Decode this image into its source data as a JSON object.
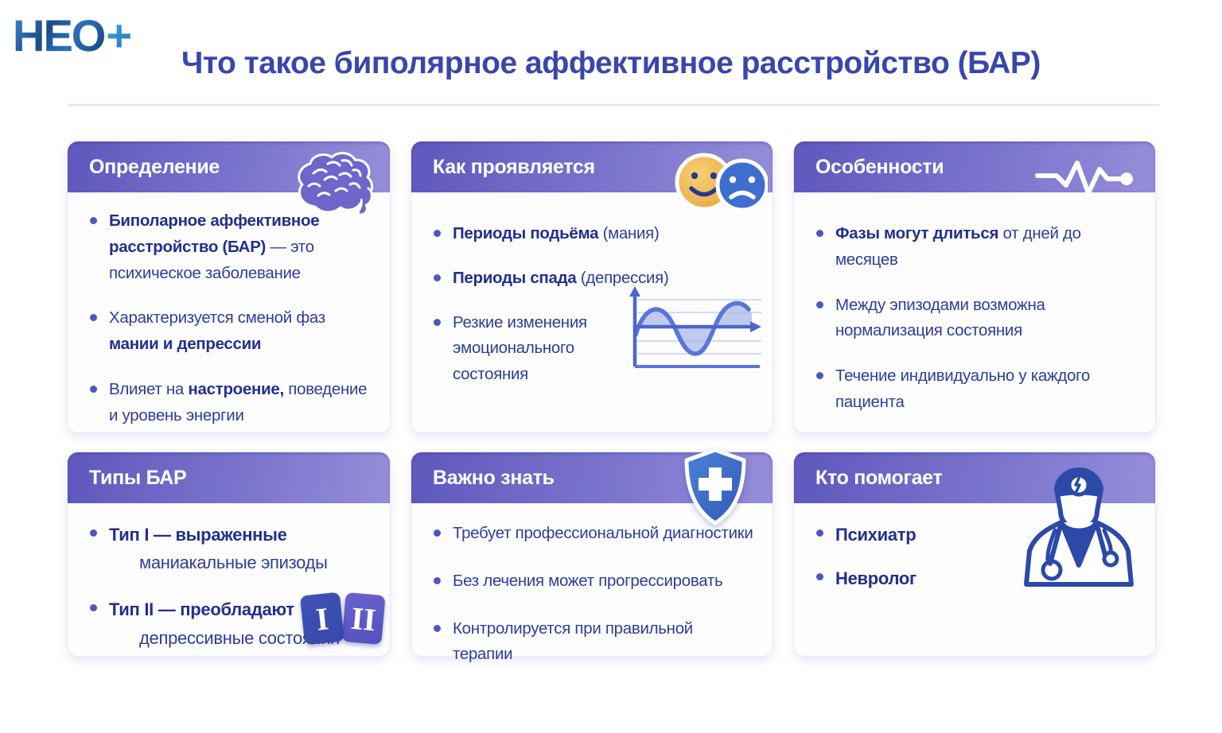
{
  "logo": {
    "main": "НЕО",
    "plus": "+"
  },
  "title": "Что такое биполярное аффективное расстройство (БАР)",
  "colors": {
    "title_blue": "#3946ac",
    "header_gradient_start": "#5f58bd",
    "header_gradient_end": "#948ed9",
    "body_text": "#2e3d99",
    "bullet_dot": "#4d58bb",
    "smiley_orange": "#efb457",
    "sad_blue": "#3e6ed0",
    "shield_blue": "#3e6dc9"
  },
  "cards": [
    {
      "title": "Определение",
      "icon": "brain-icon",
      "bullets": [
        {
          "segments": [
            {
              "t": "Биполарное аффективное расстройство (БАР)",
              "b": true
            },
            {
              "t": " — это психическое заболевание",
              "b": false
            }
          ]
        },
        {
          "segments": [
            {
              "t": "Характеризуется сменой фаз ",
              "b": false
            },
            {
              "t": "мании и депрессии",
              "b": true
            }
          ]
        },
        {
          "segments": [
            {
              "t": "Влияет на ",
              "b": false
            },
            {
              "t": "настроение,",
              "b": true
            },
            {
              "t": " поведение и уровень энергии",
              "b": false
            }
          ]
        }
      ]
    },
    {
      "title": "Как проявляется",
      "icon": "happy-sad-faces-icon",
      "bullets": [
        {
          "segments": [
            {
              "t": "Периоды подьёма",
              "b": true
            },
            {
              "t": " (мания)",
              "b": false
            }
          ]
        },
        {
          "segments": [
            {
              "t": "Периоды спада",
              "b": true
            },
            {
              "t": " (депрессия)",
              "b": false
            }
          ]
        },
        {
          "segments": [
            {
              "t": "Резкие изменения эмоционального состояния",
              "b": false
            }
          ]
        }
      ],
      "mini_chart": {
        "type": "line",
        "meaning": "волна смены эмоциональных фаз вокруг базовой линии"
      }
    },
    {
      "title": "Особенности",
      "icon": "pulse-line-icon",
      "bullets": [
        {
          "segments": [
            {
              "t": "Фазы могут длиться ",
              "b": true
            },
            {
              "t": "от дней до месяцев",
              "b": false
            }
          ]
        },
        {
          "segments": [
            {
              "t": "Между эпизодами возможна нормализация состояния",
              "b": false
            }
          ]
        },
        {
          "segments": [
            {
              "t": "Течение индивидуально у каждого пациента",
              "b": false
            }
          ]
        }
      ]
    },
    {
      "title": "Типы БАР",
      "icon": "type-badges-icon",
      "badges": [
        "I",
        "II"
      ],
      "bullets": [
        {
          "segments": [
            {
              "t": "Тип I — выраженные",
              "b": true
            },
            {
              "t": "маниакальные эпизоды",
              "b": false,
              "br": true,
              "ind": true
            }
          ]
        },
        {
          "segments": [
            {
              "t": "Тип II — преобладают",
              "b": true
            },
            {
              "t": "депрессивные состояния",
              "b": false,
              "br": true,
              "ind": true
            }
          ]
        }
      ]
    },
    {
      "title": "Важно знать",
      "icon": "shield-cross-icon",
      "bullets": [
        {
          "segments": [
            {
              "t": "Требует профессиональной диагностики",
              "b": false
            }
          ]
        },
        {
          "segments": [
            {
              "t": "Без лечения может прогрессировать",
              "b": false
            }
          ]
        },
        {
          "segments": [
            {
              "t": "Контролируется при правильной терапии",
              "b": false
            }
          ]
        }
      ]
    },
    {
      "title": "Кто помогает",
      "icon": "doctor-icon",
      "bullets": [
        {
          "segments": [
            {
              "t": "Психиатр",
              "b": true
            }
          ]
        },
        {
          "segments": [
            {
              "t": "Невролог",
              "b": true
            }
          ]
        }
      ]
    }
  ]
}
